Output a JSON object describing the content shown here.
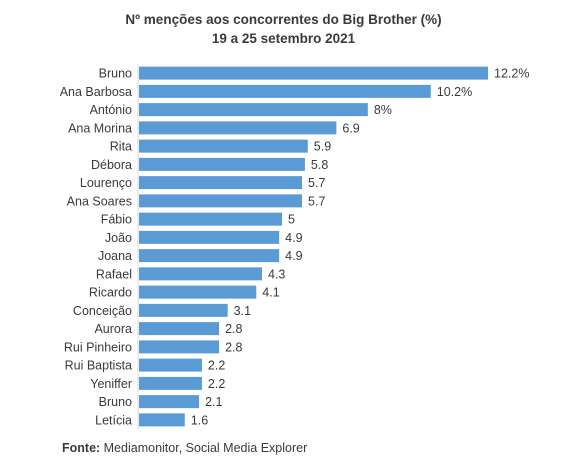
{
  "chart_data": {
    "type": "bar",
    "orientation": "horizontal",
    "title": "Nº menções aos concorrentes do Big Brother (%)",
    "subtitle": "19 a 25 setembro 2021",
    "categories": [
      "Bruno",
      "Ana Barbosa",
      "António",
      "Ana Morina",
      "Rita",
      "Débora",
      "Lourenço",
      "Ana Soares",
      "Fábio",
      "João",
      "Joana",
      "Rafael",
      "Ricardo",
      "Conceição",
      "Aurora",
      "Rui Pinheiro",
      "Rui Baptista",
      "Yeniffer",
      "Bruno",
      "Letícia"
    ],
    "values": [
      12.2,
      10.2,
      8,
      6.9,
      5.9,
      5.8,
      5.7,
      5.7,
      5,
      4.9,
      4.9,
      4.3,
      4.1,
      3.1,
      2.8,
      2.8,
      2.2,
      2.2,
      2.1,
      1.6
    ],
    "data_labels": [
      "12.2%",
      "10.2%",
      "8%",
      "6.9",
      "5.9",
      "5.8",
      "5.7",
      "5.7",
      "5",
      "4.9",
      "4.9",
      "4.3",
      "4.1",
      "3.1",
      "2.8",
      "2.8",
      "2.2",
      "2.2",
      "2.1",
      "1.6"
    ],
    "xlim": [
      0,
      12.2
    ],
    "grid": false,
    "legend": "none",
    "bar_color": "#5b9bd5"
  },
  "source": {
    "label": "Fonte:",
    "text": "Mediamonitor, Social Media Explorer"
  }
}
